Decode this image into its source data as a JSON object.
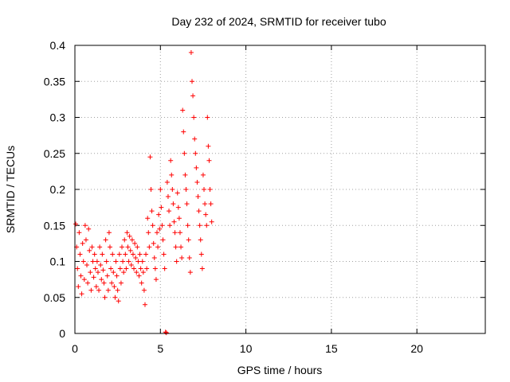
{
  "chart_data": {
    "type": "scatter",
    "title": "Day 232 of 2024, SRMTID for receiver tubo",
    "xlabel": "GPS time / hours",
    "ylabel": "SRMTID / TECUs",
    "xlim": [
      0,
      24
    ],
    "ylim": [
      0,
      0.4
    ],
    "x_ticks": [
      0,
      5,
      10,
      15,
      20
    ],
    "x_tick_labels": [
      "0",
      "5",
      "10",
      "15",
      "20"
    ],
    "y_ticks": [
      0,
      0.05,
      0.1,
      0.15,
      0.2,
      0.25,
      0.3,
      0.35,
      0.4
    ],
    "y_tick_labels": [
      "0",
      "0.05",
      "0.1",
      "0.15",
      "0.2",
      "0.25",
      "0.3",
      "0.35",
      "0.4"
    ],
    "grid": true,
    "marker": "+",
    "color": "#ff0000",
    "series": [
      {
        "name": "SRMTID",
        "points": [
          [
            0.05,
            0.152
          ],
          [
            0.1,
            0.12
          ],
          [
            0.15,
            0.09
          ],
          [
            0.2,
            0.065
          ],
          [
            0.25,
            0.14
          ],
          [
            0.3,
            0.11
          ],
          [
            0.35,
            0.08
          ],
          [
            0.4,
            0.055
          ],
          [
            0.45,
            0.125
          ],
          [
            0.5,
            0.1
          ],
          [
            0.55,
            0.075
          ],
          [
            0.6,
            0.15
          ],
          [
            0.65,
            0.13
          ],
          [
            0.7,
            0.095
          ],
          [
            0.75,
            0.07
          ],
          [
            0.8,
            0.145
          ],
          [
            0.85,
            0.115
          ],
          [
            0.9,
            0.085
          ],
          [
            0.95,
            0.06
          ],
          [
            1.0,
            0.12
          ],
          [
            1.05,
            0.1
          ],
          [
            1.1,
            0.078
          ],
          [
            1.15,
            0.11
          ],
          [
            1.2,
            0.09
          ],
          [
            1.25,
            0.065
          ],
          [
            1.3,
            0.1
          ],
          [
            1.35,
            0.085
          ],
          [
            1.4,
            0.06
          ],
          [
            1.45,
            0.12
          ],
          [
            1.5,
            0.095
          ],
          [
            1.55,
            0.075
          ],
          [
            1.6,
            0.11
          ],
          [
            1.65,
            0.088
          ],
          [
            1.7,
            0.07
          ],
          [
            1.75,
            0.05
          ],
          [
            1.8,
            0.13
          ],
          [
            1.85,
            0.1
          ],
          [
            1.9,
            0.08
          ],
          [
            1.95,
            0.06
          ],
          [
            2.0,
            0.14
          ],
          [
            2.05,
            0.12
          ],
          [
            2.1,
            0.09
          ],
          [
            2.15,
            0.07
          ],
          [
            2.2,
            0.11
          ],
          [
            2.25,
            0.085
          ],
          [
            2.3,
            0.065
          ],
          [
            2.35,
            0.05
          ],
          [
            2.4,
            0.1
          ],
          [
            2.45,
            0.08
          ],
          [
            2.5,
            0.06
          ],
          [
            2.55,
            0.045
          ],
          [
            2.6,
            0.11
          ],
          [
            2.65,
            0.09
          ],
          [
            2.7,
            0.07
          ],
          [
            2.75,
            0.12
          ],
          [
            2.8,
            0.1
          ],
          [
            2.85,
            0.085
          ],
          [
            2.9,
            0.13
          ],
          [
            2.95,
            0.11
          ],
          [
            3.0,
            0.09
          ],
          [
            3.05,
            0.14
          ],
          [
            3.1,
            0.12
          ],
          [
            3.15,
            0.1
          ],
          [
            3.2,
            0.135
          ],
          [
            3.25,
            0.115
          ],
          [
            3.3,
            0.095
          ],
          [
            3.35,
            0.13
          ],
          [
            3.4,
            0.11
          ],
          [
            3.45,
            0.09
          ],
          [
            3.5,
            0.125
          ],
          [
            3.55,
            0.105
          ],
          [
            3.6,
            0.085
          ],
          [
            3.65,
            0.12
          ],
          [
            3.7,
            0.1
          ],
          [
            3.75,
            0.08
          ],
          [
            3.8,
            0.11
          ],
          [
            3.85,
            0.09
          ],
          [
            3.9,
            0.07
          ],
          [
            3.95,
            0.1
          ],
          [
            4.0,
            0.085
          ],
          [
            4.05,
            0.06
          ],
          [
            4.1,
            0.04
          ],
          [
            4.15,
            0.11
          ],
          [
            4.2,
            0.09
          ],
          [
            4.25,
            0.16
          ],
          [
            4.3,
            0.14
          ],
          [
            4.35,
            0.12
          ],
          [
            4.4,
            0.245
          ],
          [
            4.45,
            0.2
          ],
          [
            4.5,
            0.17
          ],
          [
            4.55,
            0.15
          ],
          [
            4.6,
            0.125
          ],
          [
            4.65,
            0.105
          ],
          [
            4.7,
            0.09
          ],
          [
            4.75,
            0.075
          ],
          [
            4.8,
            0.14
          ],
          [
            4.85,
            0.12
          ],
          [
            4.9,
            0.165
          ],
          [
            4.95,
            0.145
          ],
          [
            5.0,
            0.2
          ],
          [
            5.05,
            0.175
          ],
          [
            5.1,
            0.15
          ],
          [
            5.15,
            0.13
          ],
          [
            5.2,
            0.11
          ],
          [
            5.25,
            0.09
          ],
          [
            5.3,
            0.002
          ],
          [
            5.35,
            0.001
          ],
          [
            5.4,
            0.21
          ],
          [
            5.45,
            0.19
          ],
          [
            5.5,
            0.17
          ],
          [
            5.55,
            0.15
          ],
          [
            5.6,
            0.24
          ],
          [
            5.65,
            0.22
          ],
          [
            5.7,
            0.2
          ],
          [
            5.75,
            0.18
          ],
          [
            5.8,
            0.155
          ],
          [
            5.85,
            0.14
          ],
          [
            5.9,
            0.12
          ],
          [
            5.95,
            0.1
          ],
          [
            6.0,
            0.195
          ],
          [
            6.05,
            0.175
          ],
          [
            6.1,
            0.16
          ],
          [
            6.15,
            0.14
          ],
          [
            6.2,
            0.12
          ],
          [
            6.25,
            0.105
          ],
          [
            6.3,
            0.31
          ],
          [
            6.35,
            0.28
          ],
          [
            6.4,
            0.25
          ],
          [
            6.45,
            0.22
          ],
          [
            6.5,
            0.2
          ],
          [
            6.55,
            0.18
          ],
          [
            6.6,
            0.15
          ],
          [
            6.65,
            0.13
          ],
          [
            6.7,
            0.105
          ],
          [
            6.75,
            0.085
          ],
          [
            6.8,
            0.39
          ],
          [
            6.85,
            0.35
          ],
          [
            6.9,
            0.33
          ],
          [
            6.95,
            0.3
          ],
          [
            7.0,
            0.27
          ],
          [
            7.05,
            0.25
          ],
          [
            7.1,
            0.23
          ],
          [
            7.15,
            0.21
          ],
          [
            7.2,
            0.19
          ],
          [
            7.25,
            0.17
          ],
          [
            7.3,
            0.15
          ],
          [
            7.35,
            0.13
          ],
          [
            7.4,
            0.11
          ],
          [
            7.45,
            0.09
          ],
          [
            7.5,
            0.22
          ],
          [
            7.55,
            0.2
          ],
          [
            7.6,
            0.18
          ],
          [
            7.65,
            0.165
          ],
          [
            7.7,
            0.15
          ],
          [
            7.75,
            0.3
          ],
          [
            7.8,
            0.26
          ],
          [
            7.85,
            0.24
          ],
          [
            7.9,
            0.2
          ],
          [
            7.95,
            0.18
          ],
          [
            8.0,
            0.155
          ]
        ]
      }
    ]
  }
}
